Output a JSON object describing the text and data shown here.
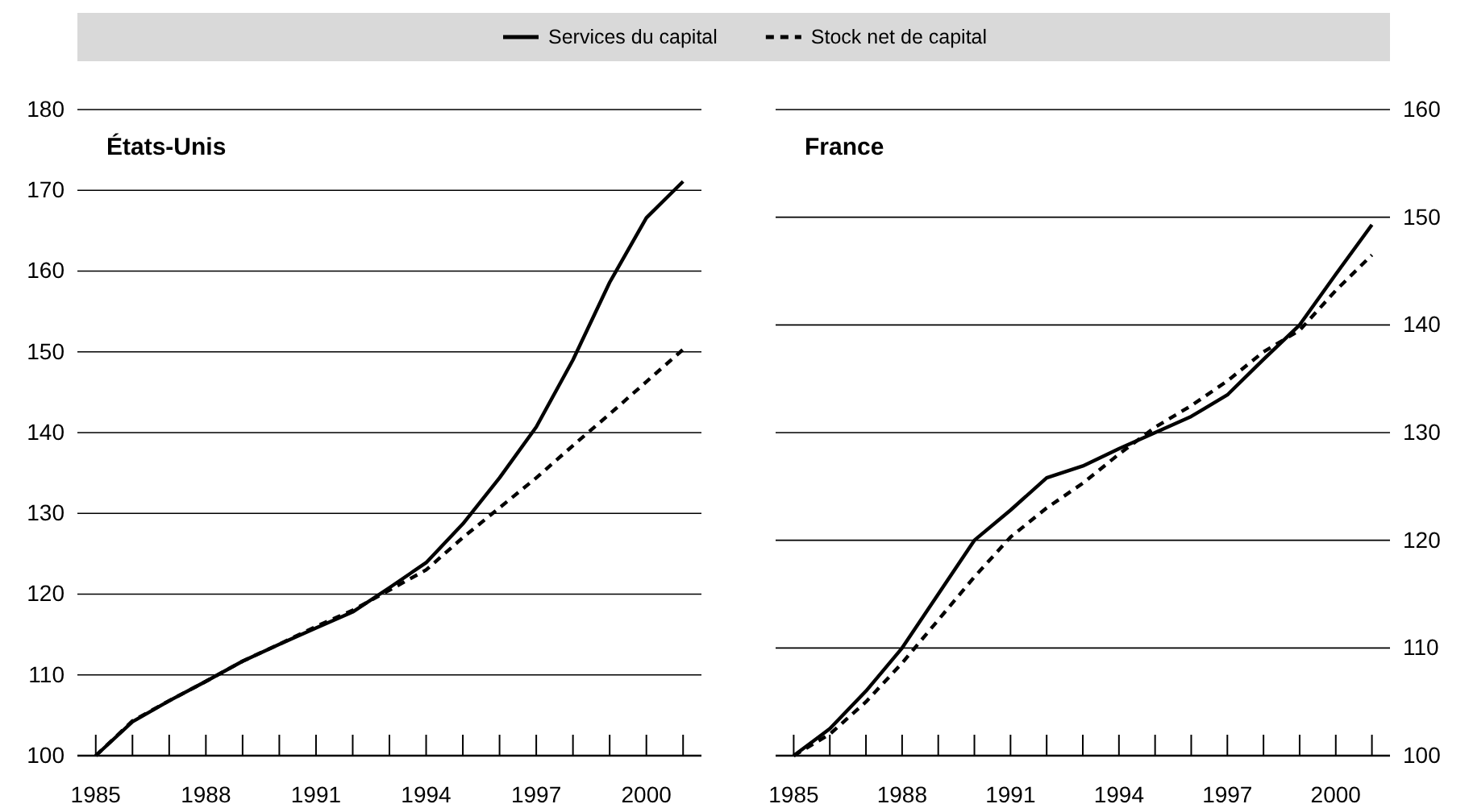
{
  "chart_data": [
    {
      "type": "line",
      "title": "États-Unis",
      "legend": "top",
      "grid": "y",
      "x": [
        1985,
        1986,
        1987,
        1988,
        1989,
        1990,
        1991,
        1992,
        1993,
        1994,
        1995,
        1996,
        1997,
        1998,
        1999,
        2000,
        2001
      ],
      "xlim": [
        1984.5,
        2001.5
      ],
      "xticks": [
        1985,
        {
          "value": 1986,
          "label": null
        },
        {
          "value": 1987,
          "label": null
        },
        1988,
        {
          "value": 1989,
          "label": null
        },
        {
          "value": 1990,
          "label": null
        },
        1991,
        {
          "value": 1992,
          "label": null
        },
        {
          "value": 1993,
          "label": null
        },
        1994,
        {
          "value": 1995,
          "label": null
        },
        {
          "value": 1996,
          "label": null
        },
        1997,
        {
          "value": 1998,
          "label": null
        },
        {
          "value": 1999,
          "label": null
        },
        2000,
        {
          "value": 2001,
          "label": null
        }
      ],
      "ylim": [
        100,
        180
      ],
      "yticks": [
        100,
        110,
        120,
        130,
        140,
        150,
        160,
        170,
        180
      ],
      "series": [
        {
          "name": "Services du capital",
          "color": "#000000",
          "line_style": "solid",
          "values": [
            100,
            104.2,
            106.8,
            109.2,
            111.7,
            113.8,
            115.8,
            117.8,
            120.8,
            123.9,
            128.7,
            134.4,
            140.7,
            149,
            158.6,
            166.6,
            171.1
          ]
        },
        {
          "name": "Stock net de capital",
          "color": "#000000",
          "line_style": "dashed",
          "values": [
            100,
            104.3,
            106.8,
            109.2,
            111.7,
            113.8,
            116,
            118,
            120.5,
            123,
            127,
            130.7,
            134.4,
            138.4,
            142.3,
            146.3,
            150.3
          ]
        }
      ]
    },
    {
      "type": "line",
      "title": "France",
      "grid": "y",
      "x": [
        1985,
        1986,
        1987,
        1988,
        1989,
        1990,
        1991,
        1992,
        1993,
        1994,
        1995,
        1996,
        1997,
        1998,
        1999,
        2000,
        2001
      ],
      "xlim": [
        1984.5,
        2001.5
      ],
      "xticks": [
        1985,
        {
          "value": 1986,
          "label": null
        },
        {
          "value": 1987,
          "label": null
        },
        1988,
        {
          "value": 1989,
          "label": null
        },
        {
          "value": 1990,
          "label": null
        },
        1991,
        {
          "value": 1992,
          "label": null
        },
        {
          "value": 1993,
          "label": null
        },
        1994,
        {
          "value": 1995,
          "label": null
        },
        {
          "value": 1996,
          "label": null
        },
        1997,
        {
          "value": 1998,
          "label": null
        },
        {
          "value": 1999,
          "label": null
        },
        2000,
        {
          "value": 2001,
          "label": null
        }
      ],
      "ylim": [
        100,
        160
      ],
      "yticks": [
        100,
        110,
        120,
        130,
        140,
        150,
        160
      ],
      "series": [
        {
          "color": "#000000",
          "line_style": "solid",
          "values": [
            100,
            102.5,
            106,
            110,
            115,
            120,
            122.8,
            125.8,
            126.9,
            128.5,
            130,
            131.5,
            133.5,
            136.8,
            140,
            144.7,
            149.3
          ]
        },
        {
          "color": "#000000",
          "line_style": "dashed",
          "values": [
            100,
            102,
            105,
            108.6,
            112.6,
            116.6,
            120.3,
            123,
            125.3,
            128,
            130.5,
            132.5,
            134.8,
            137.5,
            139.5,
            143.2,
            146.5
          ]
        }
      ]
    }
  ]
}
